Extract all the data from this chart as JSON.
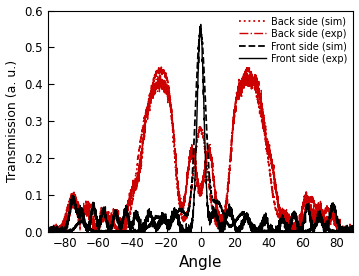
{
  "title": "",
  "xlabel": "Angle",
  "ylabel": "Transmission (a. u.)",
  "xlim": [
    -90,
    90
  ],
  "ylim": [
    0,
    0.6
  ],
  "yticks": [
    0.0,
    0.1,
    0.2,
    0.3,
    0.4,
    0.5,
    0.6
  ],
  "xticks": [
    -80,
    -60,
    -40,
    -20,
    0,
    20,
    40,
    60,
    80
  ],
  "legend": [
    {
      "label": "Front side (exp)",
      "color": "#000000",
      "linestyle": "solid",
      "linewidth": 1.0
    },
    {
      "label": "Front side (sim)",
      "color": "#000000",
      "linestyle": "dashed",
      "linewidth": 1.3
    },
    {
      "label": "Back side (exp)",
      "color": "#cc0000",
      "linestyle": "dashdot",
      "linewidth": 1.0
    },
    {
      "label": "Back side (sim)",
      "color": "#cc0000",
      "linestyle": "dotted",
      "linewidth": 1.3
    }
  ],
  "background_color": "#ffffff"
}
